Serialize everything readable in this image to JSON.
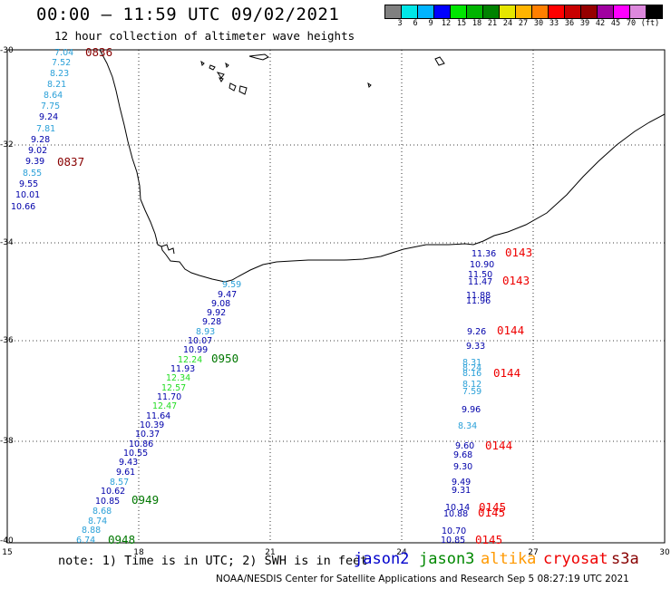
{
  "header": {
    "title": "00:00 – 11:59 UTC 09/02/2021",
    "subtitle": "12 hour collection of altimeter wave heights"
  },
  "colorbar": {
    "colors": [
      "#808080",
      "#00e6e6",
      "#00b4ff",
      "#0000ff",
      "#00e600",
      "#00b400",
      "#008200",
      "#e6e600",
      "#ffb400",
      "#ff7f00",
      "#ff0000",
      "#c80000",
      "#960000",
      "#a000a0",
      "#ff00ff",
      "#dd88dd",
      "#000000"
    ],
    "labels": [
      "3",
      "6",
      "9",
      "12",
      "15",
      "18",
      "21",
      "24",
      "27",
      "30",
      "33",
      "36",
      "39",
      "42",
      "45",
      "70",
      "(ft)"
    ]
  },
  "axes": {
    "lat_labels": [
      "-30",
      "-32",
      "-34",
      "-36",
      "-38",
      "-40"
    ],
    "lon_labels": [
      "15",
      "18",
      "21",
      "24",
      "27",
      "30"
    ]
  },
  "footer": {
    "note": "note:  1) Time is in UTC; 2) SWH is in feet",
    "credit": "NOAA/NESDIS Center for Satellite Applications and Research    Sep  5 08:27:19 UTC 2021"
  },
  "legend": [
    {
      "name": "jason2",
      "color": "#0000cc"
    },
    {
      "name": "jason3",
      "color": "#008800"
    },
    {
      "name": "altika",
      "color": "#ff9900"
    },
    {
      "name": "cryosat",
      "color": "#ee0000"
    },
    {
      "name": "s3a",
      "color": "#880000"
    }
  ],
  "track_west": [
    {
      "v": "7.04",
      "c": "#2aa0d8"
    },
    {
      "v": "7.52",
      "c": "#2aa0d8"
    },
    {
      "v": "8.23",
      "c": "#2aa0d8"
    },
    {
      "v": "8.21",
      "c": "#2aa0d8"
    },
    {
      "v": "8.64",
      "c": "#2aa0d8"
    },
    {
      "v": "7.75",
      "c": "#2aa0d8"
    },
    {
      "v": "9.24",
      "c": "#0000aa"
    },
    {
      "v": "7.81",
      "c": "#2aa0d8"
    },
    {
      "v": "9.28",
      "c": "#0000aa"
    },
    {
      "v": "9.02",
      "c": "#0000aa"
    },
    {
      "v": "9.39",
      "c": "#0000aa"
    },
    {
      "v": "8.55",
      "c": "#2aa0d8"
    },
    {
      "v": "9.55",
      "c": "#0000aa"
    },
    {
      "v": "10.01",
      "c": "#0000aa"
    },
    {
      "v": "10.66",
      "c": "#0000aa"
    }
  ],
  "track_west_times": [
    "0836",
    "0837"
  ],
  "track_diag": [
    {
      "v": "9.59",
      "c": "#2aa0d8"
    },
    {
      "v": "9.47",
      "c": "#0000aa"
    },
    {
      "v": "9.08",
      "c": "#0000aa"
    },
    {
      "v": "9.92",
      "c": "#0000aa"
    },
    {
      "v": "9.28",
      "c": "#0000aa"
    },
    {
      "v": "8.93",
      "c": "#2aa0d8"
    },
    {
      "v": "10.07",
      "c": "#0000aa"
    },
    {
      "v": "10.99",
      "c": "#0000aa"
    },
    {
      "v": "12.24",
      "c": "#22dd22"
    },
    {
      "v": "11.93",
      "c": "#0000aa"
    },
    {
      "v": "12.34",
      "c": "#22dd22"
    },
    {
      "v": "12.57",
      "c": "#22dd22"
    },
    {
      "v": "11.70",
      "c": "#0000aa"
    },
    {
      "v": "12.47",
      "c": "#22dd22"
    },
    {
      "v": "11.64",
      "c": "#0000aa"
    },
    {
      "v": "10.39",
      "c": "#0000aa"
    },
    {
      "v": "10.37",
      "c": "#0000aa"
    },
    {
      "v": "10.86",
      "c": "#0000aa"
    },
    {
      "v": "10.55",
      "c": "#0000aa"
    },
    {
      "v": "9.43",
      "c": "#0000aa"
    },
    {
      "v": "9.61",
      "c": "#0000aa"
    },
    {
      "v": "8.57",
      "c": "#2aa0d8"
    },
    {
      "v": "10.62",
      "c": "#0000aa"
    },
    {
      "v": "10.85",
      "c": "#0000aa"
    },
    {
      "v": "8.68",
      "c": "#2aa0d8"
    },
    {
      "v": "8.74",
      "c": "#2aa0d8"
    },
    {
      "v": "8.88",
      "c": "#2aa0d8"
    },
    {
      "v": "6.74",
      "c": "#2aa0d8"
    }
  ],
  "track_diag_times": [
    "0950",
    "0949",
    "0948"
  ],
  "track_east": [
    {
      "v": "11.36",
      "c": "#0000aa"
    },
    {
      "v": "10.90",
      "c": "#0000aa"
    },
    {
      "v": "11.50",
      "c": "#0000aa"
    },
    {
      "v": "11.47",
      "c": "#0000aa"
    },
    {
      "v": "11.88",
      "c": "#0000aa"
    },
    {
      "v": "11.96",
      "c": "#0000aa"
    },
    {
      "v": "9.26",
      "c": "#0000aa"
    },
    {
      "v": "9.33",
      "c": "#0000aa"
    },
    {
      "v": "8.31",
      "c": "#2aa0d8"
    },
    {
      "v": "8.24",
      "c": "#2aa0d8"
    },
    {
      "v": "8.16",
      "c": "#2aa0d8"
    },
    {
      "v": "8.12",
      "c": "#2aa0d8"
    },
    {
      "v": "7.59",
      "c": "#2aa0d8"
    },
    {
      "v": "9.96",
      "c": "#0000aa"
    },
    {
      "v": "8.34",
      "c": "#2aa0d8"
    },
    {
      "v": "9.60",
      "c": "#0000aa"
    },
    {
      "v": "9.68",
      "c": "#0000aa"
    },
    {
      "v": "9.30",
      "c": "#0000aa"
    },
    {
      "v": "9.49",
      "c": "#0000aa"
    },
    {
      "v": "9.31",
      "c": "#0000aa"
    },
    {
      "v": "10.14",
      "c": "#0000aa"
    },
    {
      "v": "10.88",
      "c": "#0000aa"
    },
    {
      "v": "10.70",
      "c": "#0000aa"
    },
    {
      "v": "10.85",
      "c": "#0000aa"
    }
  ],
  "track_east_times": [
    "0143",
    "0143",
    "0144",
    "0144",
    "0144",
    "0145",
    "0145",
    "0145"
  ]
}
